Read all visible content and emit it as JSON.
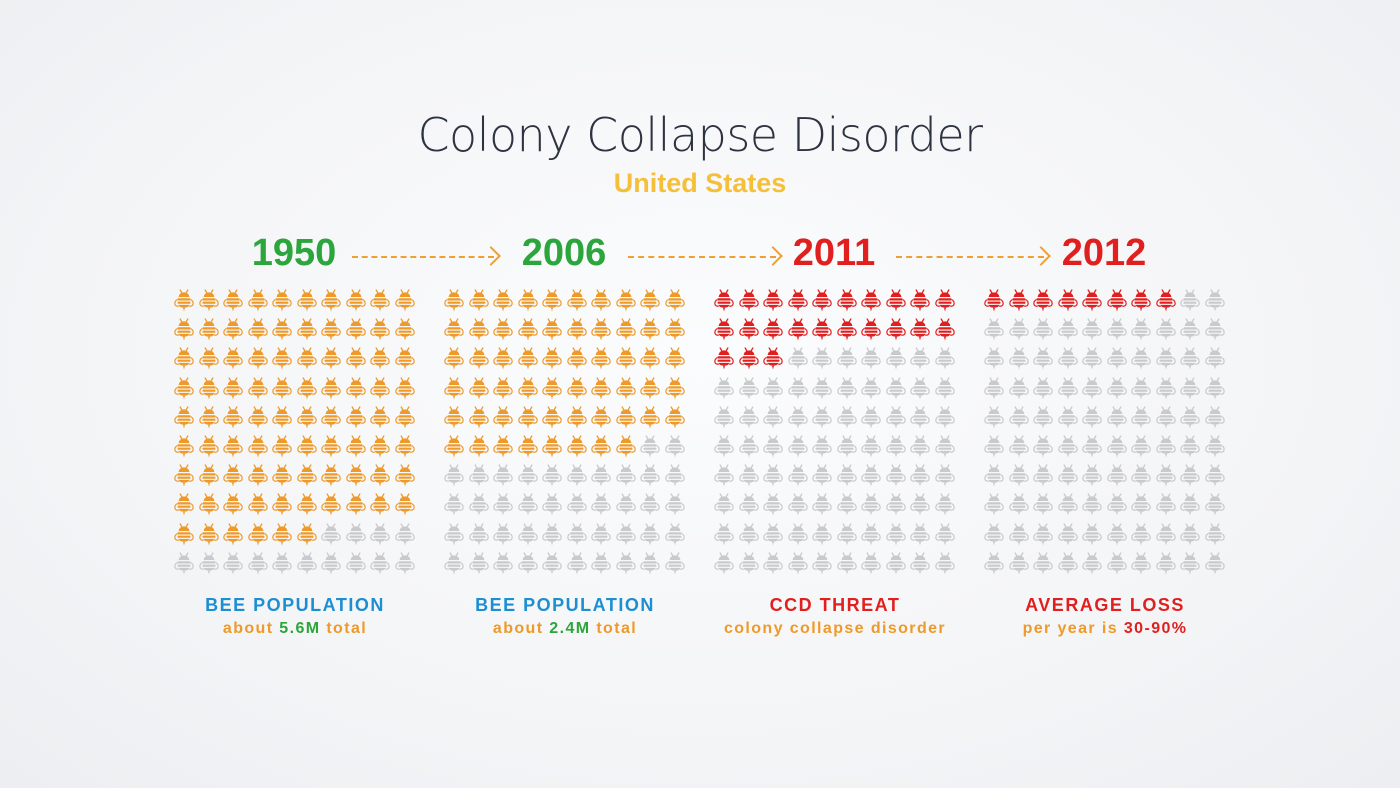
{
  "title": "Colony Collapse Disorder",
  "subtitle": "United States",
  "colors": {
    "orange": "#ee9a2a",
    "red": "#e0201f",
    "gray": "#c9cacc",
    "green": "#2ca53c",
    "blue": "#1d8fd1",
    "yellow": "#f6bf3a"
  },
  "chart_data": {
    "type": "pictogram",
    "title": "Colony Collapse Disorder",
    "subtitle": "United States",
    "icon": "bee-icon",
    "grid": {
      "rows": 10,
      "cols": 10,
      "total": 100
    },
    "panels": [
      {
        "year": "1950",
        "year_color": "#2ca53c",
        "filled": 86,
        "fill_color": "#ee9a2a",
        "label": "BEE POPULATION",
        "label_color": "#1d8fd1",
        "detail_prefix": "about ",
        "detail_value": "5.6M",
        "detail_suffix": " total",
        "detail_value_color": "#2ca53c"
      },
      {
        "year": "2006",
        "year_color": "#2ca53c",
        "filled": 58,
        "fill_color": "#ee9a2a",
        "label": "BEE POPULATION",
        "label_color": "#1d8fd1",
        "detail_prefix": "about ",
        "detail_value": "2.4M",
        "detail_suffix": " total",
        "detail_value_color": "#2ca53c"
      },
      {
        "year": "2011",
        "year_color": "#e0201f",
        "filled": 23,
        "fill_color": "#e0201f",
        "label": "CCD THREAT",
        "label_color": "#e0201f",
        "detail_prefix": "colony collapse disorder",
        "detail_value": "",
        "detail_suffix": "",
        "detail_value_color": "#e0201f"
      },
      {
        "year": "2012",
        "year_color": "#e0201f",
        "filled": 8,
        "fill_color": "#e0201f",
        "label": "AVERAGE LOSS",
        "label_color": "#e0201f",
        "detail_prefix": "per year is ",
        "detail_value": "30-90%",
        "detail_suffix": "",
        "detail_value_color": "#e0201f"
      }
    ]
  }
}
